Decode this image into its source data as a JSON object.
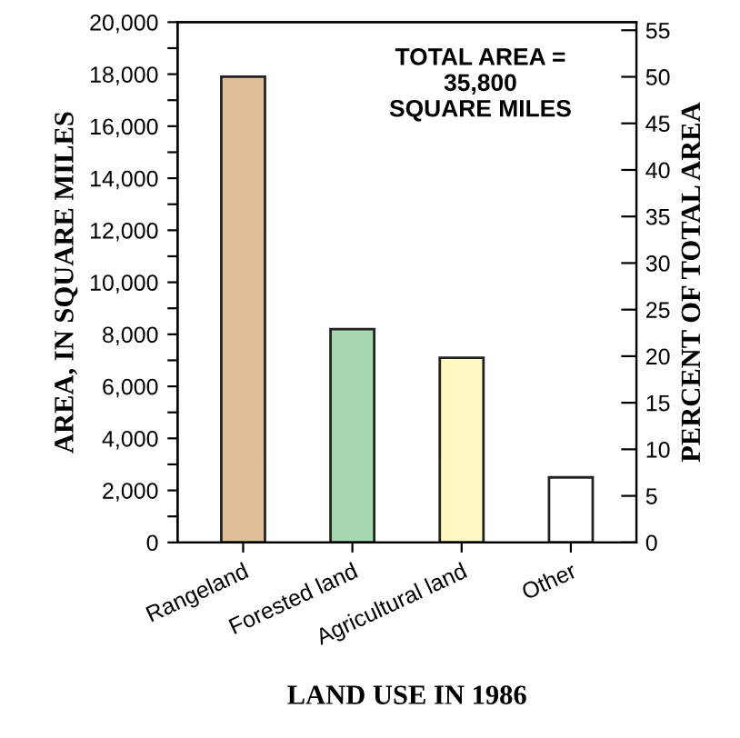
{
  "chart_data": {
    "type": "bar",
    "xlabel": "LAND USE IN 1986",
    "ylabel": "AREA, IN SQUARE MILES",
    "y2label": "PERCENT OF TOTAL AREA",
    "categories": [
      "Rangeland",
      "Forested land",
      "Agricultural land",
      "Other"
    ],
    "values": [
      17900,
      8200,
      7100,
      2500
    ],
    "colors": [
      "#e0c096",
      "#a8d8b0",
      "#fff8c0",
      "#ffffff"
    ],
    "ylim": [
      0,
      20000
    ],
    "yticks": [
      0,
      {
        "value": 1000,
        "label": null
      },
      {
        "value": 2000,
        "label": "2,000"
      },
      {
        "value": 3000,
        "label": null
      },
      {
        "value": 4000,
        "label": "4,000"
      },
      {
        "value": 5000,
        "label": null
      },
      {
        "value": 6000,
        "label": "6,000"
      },
      {
        "value": 7000,
        "label": null
      },
      {
        "value": 8000,
        "label": "8,000"
      },
      {
        "value": 9000,
        "label": null
      },
      {
        "value": 10000,
        "label": "10,000"
      },
      {
        "value": 11000,
        "label": null
      },
      {
        "value": 12000,
        "label": "12,000"
      },
      {
        "value": 13000,
        "label": null
      },
      {
        "value": 14000,
        "label": "14,000"
      },
      {
        "value": 15000,
        "label": null
      },
      {
        "value": 16000,
        "label": "16,000"
      },
      {
        "value": 17000,
        "label": null
      },
      {
        "value": 18000,
        "label": "18,000"
      },
      {
        "value": 19000,
        "label": null
      },
      {
        "value": 20000,
        "label": "20,000"
      }
    ],
    "y2lim": [
      0,
      55.87
    ],
    "y2ticks": [
      0,
      5,
      10,
      15,
      20,
      25,
      30,
      35,
      40,
      45,
      50,
      55
    ],
    "annotations": [
      "TOTAL AREA =\n35,800\nSQUARE MILES"
    ],
    "grid": false,
    "legend": false
  }
}
